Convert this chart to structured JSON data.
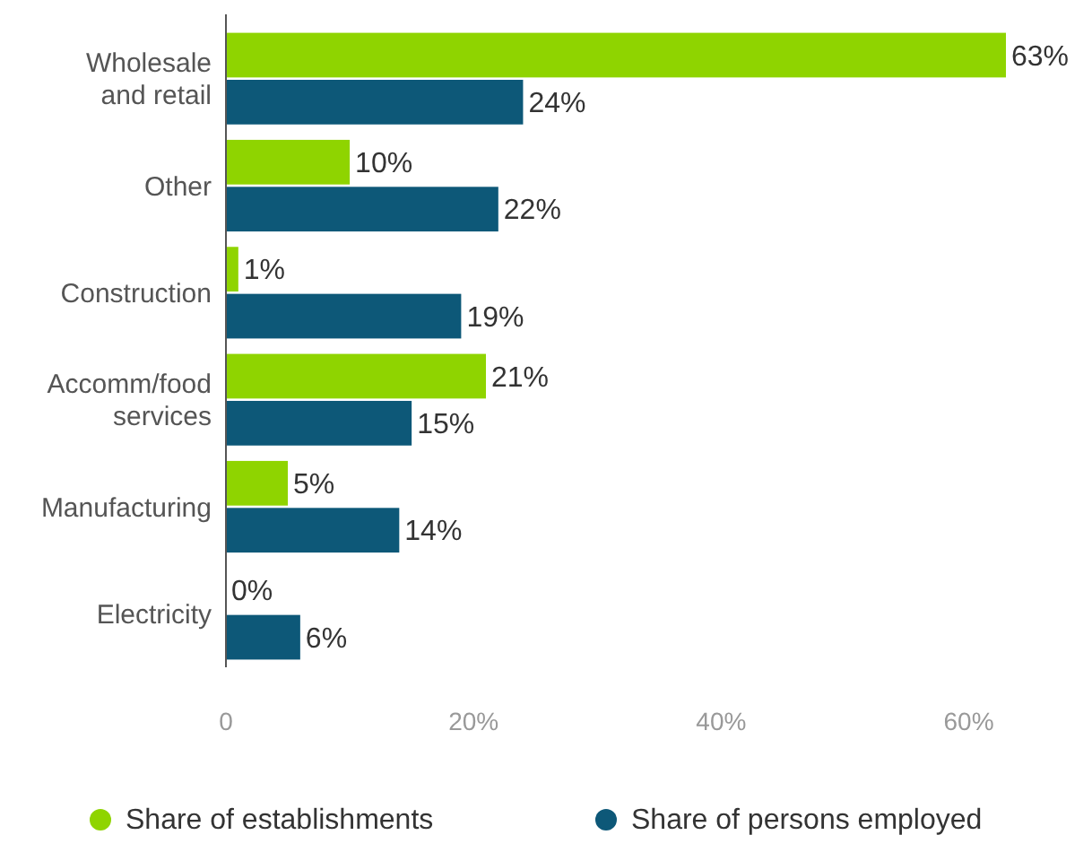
{
  "chart_data": {
    "type": "bar",
    "orientation": "horizontal",
    "categories": [
      "Wholesale and retail",
      "Other",
      "Construction",
      "Accomm/food services",
      "Manufacturing",
      "Electricity"
    ],
    "series": [
      {
        "name": "Share of establishments",
        "color": "#8fd400",
        "values": [
          63,
          10,
          1,
          21,
          5,
          0
        ],
        "value_labels": [
          "63%",
          "10%",
          "1%",
          "21%",
          "5%",
          "0%"
        ]
      },
      {
        "name": "Share of persons employed",
        "color": "#0d5878",
        "values": [
          24,
          22,
          19,
          15,
          14,
          6
        ],
        "value_labels": [
          "24%",
          "22%",
          "19%",
          "15%",
          "14%",
          "6%"
        ]
      }
    ],
    "xlim": [
      0,
      63
    ],
    "xticks": [
      0,
      {
        "value": 20,
        "label": "20%"
      },
      {
        "value": 40,
        "label": "40%"
      },
      {
        "value": 60,
        "label": "60%"
      }
    ],
    "grid": false,
    "legend": "bottom"
  }
}
